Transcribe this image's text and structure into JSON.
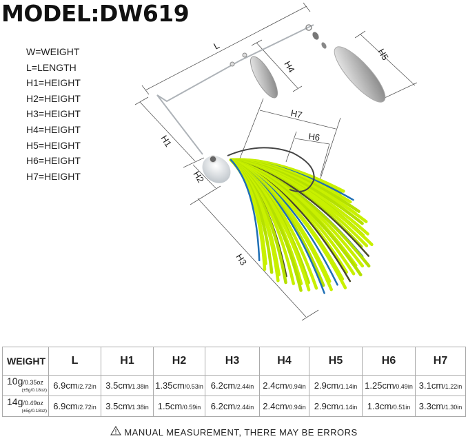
{
  "title": "MODEL:DW619",
  "legend": [
    "W=WEIGHT",
    "L=LENGTH",
    "H1=HEIGHT",
    "H2=HEIGHT",
    "H3=HEIGHT",
    "H4=HEIGHT",
    "H5=HEIGHT",
    "H6=HEIGHT",
    "H7=HEIGHT"
  ],
  "dimension_labels": {
    "L": "L",
    "H1": "H1",
    "H2": "H2",
    "H3": "H3",
    "H4": "H4",
    "H5": "H5",
    "H6": "H6",
    "H7": "H7"
  },
  "colors": {
    "skirt": "#c8f000",
    "skirt_accent": "#1f6fb5",
    "blade": "#c9c9c9"
  },
  "table": {
    "headers": [
      "WEIGHT",
      "L",
      "H1",
      "H2",
      "H3",
      "H4",
      "H5",
      "H6",
      "H7"
    ],
    "rows": [
      {
        "weight": "10g",
        "weight_oz": "/0.35oz",
        "tolerance": "(±5g/0.18oz)",
        "cells": [
          [
            "6.9cm",
            "/2.72in"
          ],
          [
            "3.5cm",
            "/1.38in"
          ],
          [
            "1.35cm",
            "/0.53in"
          ],
          [
            "6.2cm",
            "/2.44in"
          ],
          [
            "2.4cm",
            "/0.94in"
          ],
          [
            "2.9cm",
            "/1.14in"
          ],
          [
            "1.25cm",
            "/0.49in"
          ],
          [
            "3.1cm",
            "/1.22in"
          ]
        ]
      },
      {
        "weight": "14g",
        "weight_oz": "/0.49oz",
        "tolerance": "(±5g/0.18oz)",
        "cells": [
          [
            "6.9cm",
            "/2.72in"
          ],
          [
            "3.5cm",
            "/1.38in"
          ],
          [
            "1.5cm",
            "/0.59in"
          ],
          [
            "6.2cm",
            "/2.44in"
          ],
          [
            "2.4cm",
            "/0.94in"
          ],
          [
            "2.9cm",
            "/1.14in"
          ],
          [
            "1.3cm",
            "/0.51in"
          ],
          [
            "3.3cm",
            "/1.30in"
          ]
        ]
      }
    ]
  },
  "note": "MANUAL MEASUREMENT, THERE MAY BE ERRORS",
  "note_icon": "warning-triangle-icon"
}
